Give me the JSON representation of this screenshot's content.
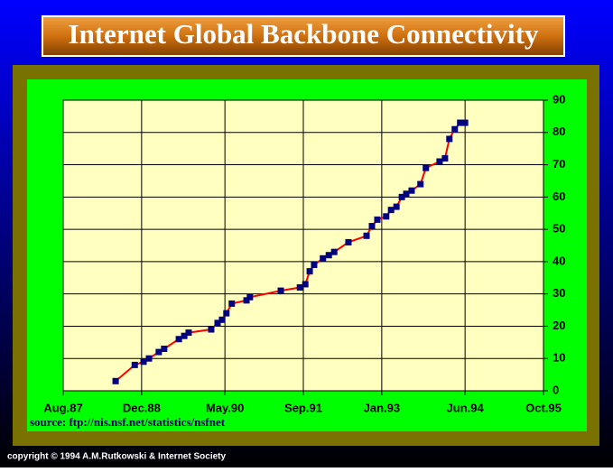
{
  "chart_data": {
    "type": "line",
    "title": "Internet Global Backbone Connectivity",
    "source": "source: ftp://nis.nsf.net/statistics/nsfnet",
    "x": [
      10.7,
      14.6,
      16.4,
      17.5,
      19.5,
      20.6,
      23.6,
      24.7,
      25.6,
      30.2,
      31.5,
      32.4,
      33.3,
      34.4,
      37.4,
      38.1,
      44.4,
      48.3,
      49.4,
      50.3,
      51.2,
      53.0,
      54.2,
      55.3,
      58.2,
      61.9,
      63.0,
      64.1,
      65.9,
      66.9,
      68.0,
      69.1,
      70.0,
      71.1,
      72.9,
      74.0,
      76.8,
      77.9,
      78.8,
      79.9,
      81.0,
      82.0
    ],
    "values": [
      3,
      8,
      9,
      10,
      12,
      13,
      16,
      17,
      18,
      19,
      21,
      22,
      24,
      27,
      28,
      29,
      31,
      32,
      33,
      37,
      39,
      41,
      42,
      43,
      46,
      48,
      51,
      53,
      54,
      56,
      57,
      60,
      61,
      62,
      64,
      69,
      71,
      72,
      78,
      81,
      83,
      83
    ],
    "color": "#ff0000",
    "marker_color": "#000080",
    "xlim": [
      0,
      98
    ],
    "xticks": [
      {
        "value": 0,
        "label": "Aug.87"
      },
      {
        "value": 16,
        "label": "Dec.88"
      },
      {
        "value": 33,
        "label": "May.90"
      },
      {
        "value": 49,
        "label": "Sep.91"
      },
      {
        "value": 65,
        "label": "Jan.93"
      },
      {
        "value": 82,
        "label": "Jun.94"
      },
      {
        "value": 98,
        "label": "Oct.95"
      }
    ],
    "ylim": [
      0,
      90
    ],
    "yticks": [
      0,
      10,
      20,
      30,
      40,
      50,
      60,
      70,
      80,
      90
    ],
    "grid": true
  },
  "footer": {
    "copyright": "copyright © 1994 A.M.Rutkowski & Internet Society"
  }
}
